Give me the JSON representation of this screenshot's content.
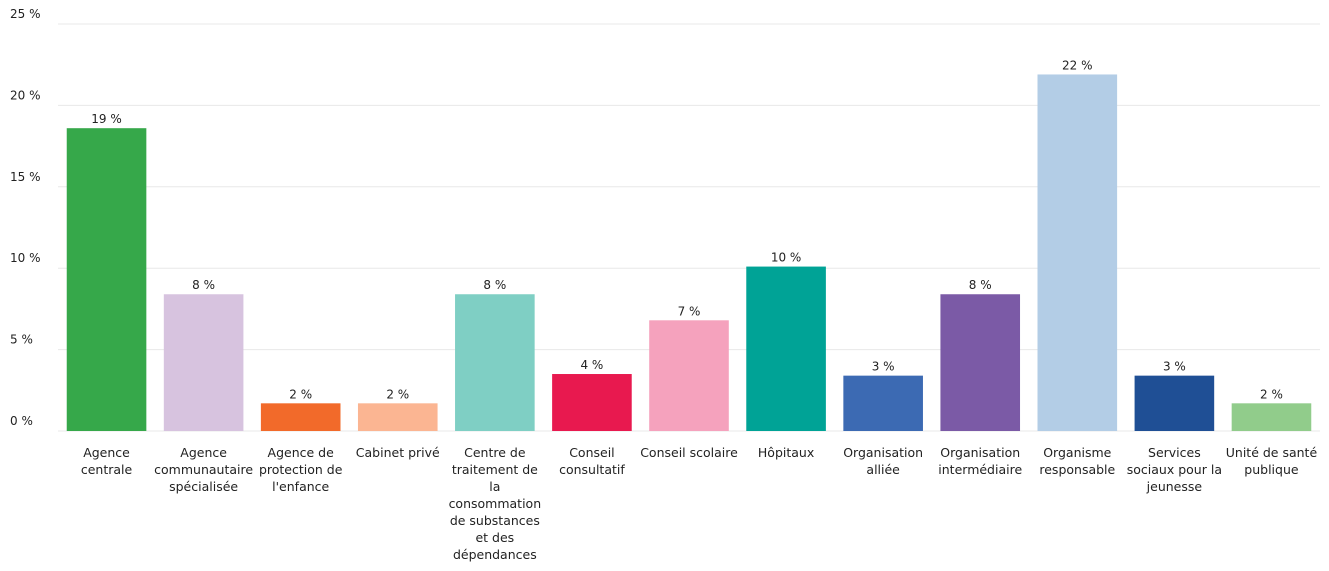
{
  "chart_data": {
    "type": "bar",
    "categories": [
      "Agence centrale",
      "Agence communautaire spécialisée",
      "Agence de protection de l'enfance",
      "Cabinet privé",
      "Centre de traitement de la consommation de substances et des dépendances",
      "Conseil consultatif",
      "Conseil scolaire",
      "Hôpitaux",
      "Organisation alliée",
      "Organisation intermédiaire",
      "Organisme responsable",
      "Services sociaux pour la jeunesse",
      "Unité de santé publique"
    ],
    "values": [
      18.6,
      8.4,
      1.7,
      1.7,
      8.4,
      3.5,
      6.8,
      10.1,
      3.4,
      8.4,
      21.9,
      3.4,
      1.7
    ],
    "value_labels": [
      "19 %",
      "8 %",
      "2 %",
      "2 %",
      "8 %",
      "4 %",
      "7 %",
      "10 %",
      "3 %",
      "8 %",
      "22 %",
      "3 %",
      "2 %"
    ],
    "colors": [
      "#36a84a",
      "#d7c3df",
      "#f26a2a",
      "#fbb592",
      "#7fcfc4",
      "#e8194f",
      "#f5a2bd",
      "#00a396",
      "#3c6ab3",
      "#7b5aa6",
      "#b3cde6",
      "#1f4f95",
      "#91cc8b"
    ],
    "ylim": [
      0,
      25
    ],
    "yticks": [
      {
        "value": 0,
        "label": "0 %"
      },
      {
        "value": 5,
        "label": "5 %"
      },
      {
        "value": 10,
        "label": "10 %"
      },
      {
        "value": 15,
        "label": "15 %"
      },
      {
        "value": 20,
        "label": "20 %"
      },
      {
        "value": 25,
        "label": "25 %"
      }
    ],
    "grid": true
  }
}
